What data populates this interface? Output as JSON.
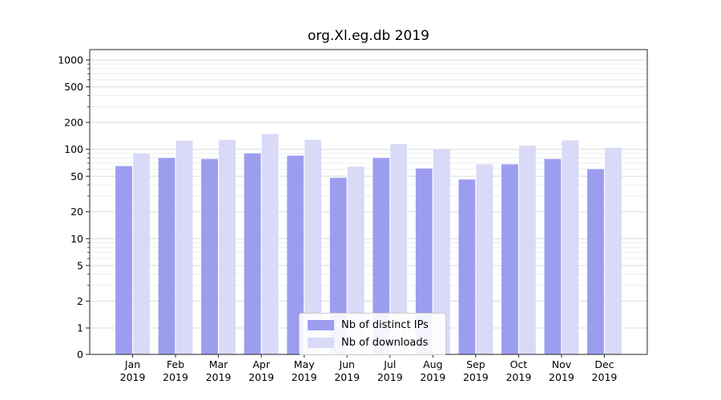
{
  "chart_data": {
    "type": "bar",
    "title": "org.Xl.eg.db 2019",
    "categories": [
      "Jan\n2019",
      "Feb\n2019",
      "Mar\n2019",
      "Apr\n2019",
      "May\n2019",
      "Jun\n2019",
      "Jul\n2019",
      "Aug\n2019",
      "Sep\n2019",
      "Oct\n2019",
      "Nov\n2019",
      "Dec\n2019"
    ],
    "series": [
      {
        "name": "Nb of distinct IPs",
        "color": "#9d9df0",
        "values": [
          65,
          80,
          78,
          90,
          85,
          48,
          80,
          61,
          46,
          68,
          78,
          60
        ]
      },
      {
        "name": "Nb of downloads",
        "color": "#d9d9f8",
        "values": [
          90,
          125,
          128,
          148,
          128,
          64,
          115,
          100,
          68,
          110,
          126,
          104
        ]
      }
    ],
    "xlabel": "",
    "ylabel": "",
    "y_scale": "symlog",
    "y_ticks": [
      0,
      1,
      2,
      5,
      10,
      20,
      50,
      100,
      200,
      500,
      1000
    ],
    "y_minor_ticks": [
      3,
      4,
      6,
      7,
      8,
      9,
      30,
      40,
      60,
      70,
      80,
      90,
      300,
      400,
      600,
      700,
      800,
      900
    ],
    "ylim": [
      0,
      1000
    ],
    "grid": "horizontal",
    "legend_position": "lower center"
  },
  "colors": {
    "spine": "#262626",
    "grid_major": "#dcdcdc",
    "grid_minor": "#ededed",
    "tick_text": "#000000"
  }
}
